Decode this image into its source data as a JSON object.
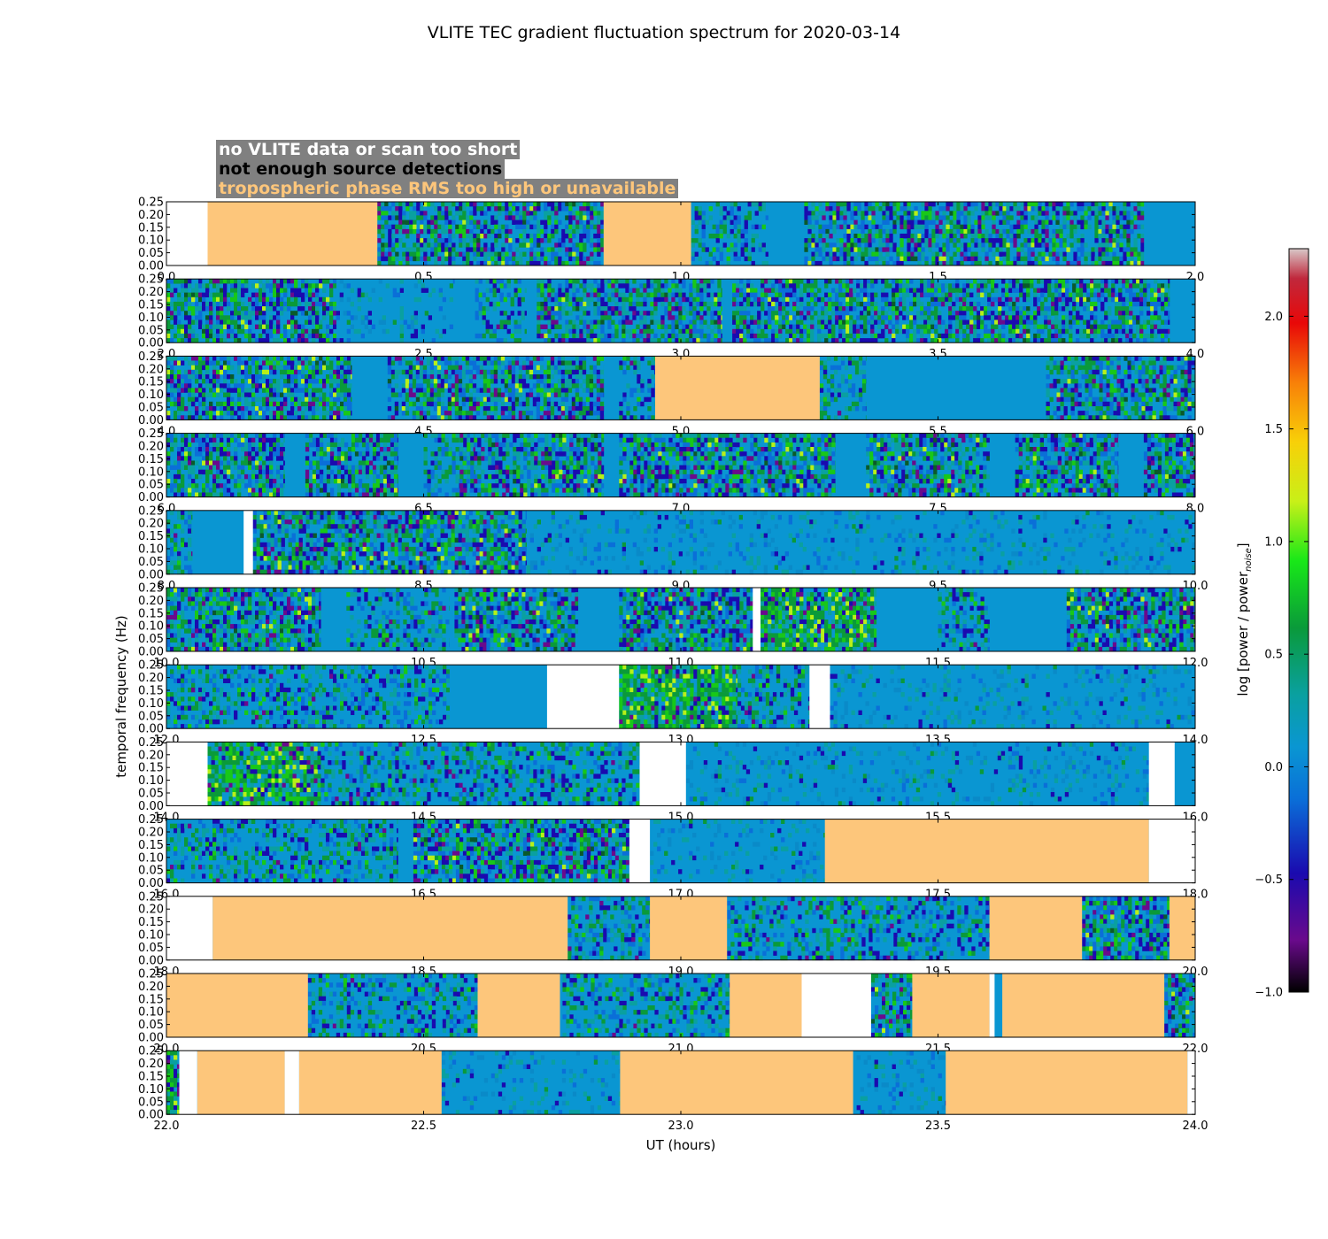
{
  "colors": {
    "no_data": "#ffffff",
    "few_detections": "#ffffff",
    "tropo_bad": "#fdc67b",
    "legend_bg": "#808080",
    "base": "#0a96d2"
  },
  "chart_data": {
    "type": "heatmap",
    "title": "VLITE TEC gradient fluctuation spectrum for 2020-03-14",
    "xlabel": "UT (hours)",
    "ylabel": "temporal frequency (Hz)",
    "colorbar_label": "log [power / power",
    "colorbar_sub": "noise",
    "colorbar_close": "]",
    "colorbar_range": [
      -1.0,
      2.3
    ],
    "colorbar_ticks": [
      "2.0",
      "1.5",
      "1.0",
      "0.5",
      "0.0",
      "−0.5",
      "−1.0"
    ],
    "colorbar_tick_values": [
      2.0,
      1.5,
      1.0,
      0.5,
      0.0,
      -0.5,
      -1.0
    ],
    "ylim": [
      0.0,
      0.25
    ],
    "yticks": [
      "0.00",
      "0.05",
      "0.10",
      "0.15",
      "0.20",
      "0.25"
    ],
    "legend": [
      {
        "text": "no VLITE data or scan too short",
        "color": "#ffffff"
      },
      {
        "text": "not enough source detections",
        "color": "#000000"
      },
      {
        "text": "tropospheric phase RMS too high or unavailable",
        "color": "#fdc67b"
      }
    ],
    "panels": [
      {
        "xlim": [
          0.0,
          2.0
        ],
        "xticks": [
          "0.0",
          "0.5",
          "1.0",
          "1.5",
          "2.0"
        ],
        "flags": [
          {
            "start": 0.0,
            "end": 0.08,
            "kind": "no_data"
          },
          {
            "start": 0.08,
            "end": 0.41,
            "kind": "tropo_bad"
          },
          {
            "start": 0.85,
            "end": 1.02,
            "kind": "tropo_bad"
          }
        ],
        "active": [
          [
            0.41,
            0.85,
            "high"
          ],
          [
            1.02,
            1.17,
            "med"
          ],
          [
            1.24,
            1.9,
            "high"
          ]
        ]
      },
      {
        "xlim": [
          2.0,
          4.0
        ],
        "xticks": [
          "2.0",
          "2.5",
          "3.0",
          "3.5",
          "4.0"
        ],
        "flags": [],
        "active": [
          [
            2.0,
            2.33,
            "high"
          ],
          [
            2.33,
            2.56,
            "low"
          ],
          [
            2.6,
            2.7,
            "med"
          ],
          [
            2.72,
            3.08,
            "high"
          ],
          [
            3.1,
            3.95,
            "high"
          ]
        ]
      },
      {
        "xlim": [
          4.0,
          6.0
        ],
        "xticks": [
          "4.0",
          "4.5",
          "5.0",
          "5.5",
          "6.0"
        ],
        "flags": [
          {
            "start": 4.95,
            "end": 5.27,
            "kind": "tropo_bad"
          }
        ],
        "active": [
          [
            4.0,
            4.36,
            "high"
          ],
          [
            4.43,
            4.85,
            "high"
          ],
          [
            4.88,
            4.95,
            "med"
          ],
          [
            5.27,
            5.36,
            "med"
          ],
          [
            5.71,
            6.0,
            "high"
          ]
        ]
      },
      {
        "xlim": [
          6.0,
          8.0
        ],
        "xticks": [
          "6.0",
          "6.5",
          "7.0",
          "7.5",
          "8.0"
        ],
        "flags": [],
        "active": [
          [
            6.0,
            6.23,
            "high"
          ],
          [
            6.27,
            6.45,
            "high"
          ],
          [
            6.5,
            6.6,
            "med"
          ],
          [
            6.57,
            6.85,
            "high"
          ],
          [
            6.88,
            7.3,
            "high"
          ],
          [
            7.36,
            7.6,
            "high"
          ],
          [
            7.65,
            7.85,
            "high"
          ],
          [
            7.9,
            8.0,
            "high"
          ]
        ]
      },
      {
        "xlim": [
          8.0,
          10.0
        ],
        "xticks": [
          "8.0",
          "8.5",
          "9.0",
          "9.5",
          "10.0"
        ],
        "flags": [
          {
            "start": 8.15,
            "end": 8.168,
            "kind": "no_data"
          }
        ],
        "active": [
          [
            8.0,
            8.05,
            "med"
          ],
          [
            8.168,
            8.7,
            "high"
          ],
          [
            8.7,
            9.25,
            "low"
          ],
          [
            9.25,
            10.0,
            "low"
          ]
        ]
      },
      {
        "xlim": [
          10.0,
          12.0
        ],
        "xticks": [
          "10.0",
          "10.5",
          "11.0",
          "11.5",
          "12.0"
        ],
        "flags": [
          {
            "start": 11.14,
            "end": 11.155,
            "kind": "no_data"
          }
        ],
        "active": [
          [
            10.0,
            10.3,
            "high"
          ],
          [
            10.35,
            10.55,
            "med"
          ],
          [
            10.56,
            10.8,
            "high"
          ],
          [
            10.88,
            11.14,
            "high"
          ],
          [
            11.155,
            11.38,
            "green"
          ],
          [
            11.5,
            11.6,
            "med"
          ],
          [
            11.75,
            11.88,
            "high"
          ],
          [
            11.88,
            12.0,
            "high"
          ]
        ]
      },
      {
        "xlim": [
          12.0,
          14.0
        ],
        "xticks": [
          "12.0",
          "12.5",
          "13.0",
          "13.5",
          "14.0"
        ],
        "flags": [
          {
            "start": 12.74,
            "end": 12.88,
            "kind": "no_data"
          },
          {
            "start": 13.25,
            "end": 13.29,
            "kind": "no_data"
          }
        ],
        "active": [
          [
            12.0,
            12.55,
            "med"
          ],
          [
            12.88,
            13.11,
            "green"
          ],
          [
            13.11,
            13.25,
            "med"
          ],
          [
            13.29,
            14.0,
            "low"
          ]
        ]
      },
      {
        "xlim": [
          14.0,
          16.0
        ],
        "xticks": [
          "14.0",
          "14.5",
          "15.0",
          "15.5",
          "16.0"
        ],
        "flags": [
          {
            "start": 14.0,
            "end": 14.08,
            "kind": "no_data"
          },
          {
            "start": 14.92,
            "end": 15.01,
            "kind": "no_data"
          },
          {
            "start": 15.91,
            "end": 15.96,
            "kind": "no_data"
          }
        ],
        "active": [
          [
            14.08,
            14.3,
            "green"
          ],
          [
            14.3,
            14.92,
            "med"
          ],
          [
            15.01,
            15.91,
            "low"
          ]
        ]
      },
      {
        "xlim": [
          16.0,
          18.0
        ],
        "xticks": [
          "16.0",
          "16.5",
          "17.0",
          "17.5",
          "18.0"
        ],
        "flags": [
          {
            "start": 16.9,
            "end": 16.94,
            "kind": "no_data"
          },
          {
            "start": 17.28,
            "end": 17.91,
            "kind": "tropo_bad"
          },
          {
            "start": 17.91,
            "end": 18.0,
            "kind": "no_data"
          }
        ],
        "active": [
          [
            16.0,
            16.45,
            "med"
          ],
          [
            16.48,
            16.9,
            "high"
          ],
          [
            16.94,
            17.28,
            "low"
          ]
        ]
      },
      {
        "xlim": [
          18.0,
          20.0
        ],
        "xticks": [
          "18.0",
          "18.5",
          "19.0",
          "19.5",
          "20.0"
        ],
        "flags": [
          {
            "start": 18.0,
            "end": 18.09,
            "kind": "no_data"
          },
          {
            "start": 18.09,
            "end": 18.78,
            "kind": "tropo_bad"
          },
          {
            "start": 18.94,
            "end": 19.09,
            "kind": "tropo_bad"
          },
          {
            "start": 19.6,
            "end": 19.78,
            "kind": "tropo_bad"
          },
          {
            "start": 19.95,
            "end": 20.0,
            "kind": "tropo_bad"
          }
        ],
        "active": [
          [
            18.78,
            18.94,
            "med"
          ],
          [
            19.09,
            19.6,
            "med"
          ],
          [
            19.78,
            19.95,
            "high"
          ]
        ]
      },
      {
        "xlim": [
          20.0,
          22.0
        ],
        "xticks": [
          "20.0",
          "20.5",
          "21.0",
          "21.5",
          "22.0"
        ],
        "flags": [
          {
            "start": 20.0,
            "end": 20.275,
            "kind": "tropo_bad"
          },
          {
            "start": 20.605,
            "end": 20.765,
            "kind": "tropo_bad"
          },
          {
            "start": 21.095,
            "end": 21.235,
            "kind": "tropo_bad"
          },
          {
            "start": 21.235,
            "end": 21.37,
            "kind": "no_data"
          },
          {
            "start": 21.45,
            "end": 21.6,
            "kind": "tropo_bad"
          },
          {
            "start": 21.6,
            "end": 21.61,
            "kind": "no_data"
          },
          {
            "start": 21.625,
            "end": 21.94,
            "kind": "tropo_bad"
          }
        ],
        "active": [
          [
            20.275,
            20.605,
            "med"
          ],
          [
            20.77,
            21.095,
            "med"
          ],
          [
            21.37,
            21.45,
            "high"
          ],
          [
            21.94,
            22.0,
            "high"
          ]
        ]
      },
      {
        "xlim": [
          22.0,
          24.0
        ],
        "xticks": [
          "22.0",
          "22.5",
          "23.0",
          "23.5",
          "24.0"
        ],
        "flags": [
          {
            "start": 22.025,
            "end": 22.06,
            "kind": "no_data"
          },
          {
            "start": 22.06,
            "end": 22.23,
            "kind": "tropo_bad"
          },
          {
            "start": 22.23,
            "end": 22.258,
            "kind": "no_data"
          },
          {
            "start": 22.258,
            "end": 22.535,
            "kind": "tropo_bad"
          },
          {
            "start": 22.882,
            "end": 23.335,
            "kind": "tropo_bad"
          },
          {
            "start": 23.515,
            "end": 23.985,
            "kind": "tropo_bad"
          },
          {
            "start": 23.985,
            "end": 24.0,
            "kind": "no_data"
          }
        ],
        "active": [
          [
            22.0,
            22.025,
            "green"
          ],
          [
            22.535,
            22.882,
            "low"
          ],
          [
            23.335,
            23.515,
            "low"
          ]
        ]
      }
    ]
  }
}
